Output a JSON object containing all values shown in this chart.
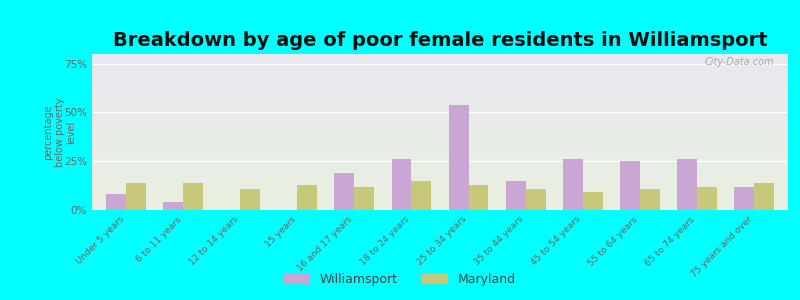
{
  "title": "Breakdown by age of poor female residents in Williamsport",
  "categories": [
    "Under 5 years",
    "6 to 11 years",
    "12 to 14 years",
    "15 years",
    "16 and 17 years",
    "18 to 24 years",
    "25 to 34 years",
    "35 to 44 years",
    "45 to 54 years",
    "55 to 64 years",
    "65 to 74 years",
    "75 years and over"
  ],
  "williamsport": [
    8,
    4,
    0,
    0,
    19,
    26,
    54,
    15,
    26,
    25,
    26,
    12
  ],
  "maryland": [
    14,
    14,
    11,
    13,
    12,
    15,
    13,
    11,
    9,
    11,
    12,
    14
  ],
  "williamsport_color": "#c9a6d4",
  "maryland_color": "#c8c87a",
  "ylabel": "percentage\nbelow poverty\nlevel",
  "ylim": [
    0,
    80
  ],
  "yticks": [
    0,
    25,
    50,
    75
  ],
  "yticklabels": [
    "0%",
    "25%",
    "50%",
    "75%"
  ],
  "bg_color": "#00ffff",
  "plot_bg_top": "#e8e8f0",
  "plot_bg_bottom": "#e8f0e0",
  "title_fontsize": 14,
  "watermark": "City-Data.com"
}
